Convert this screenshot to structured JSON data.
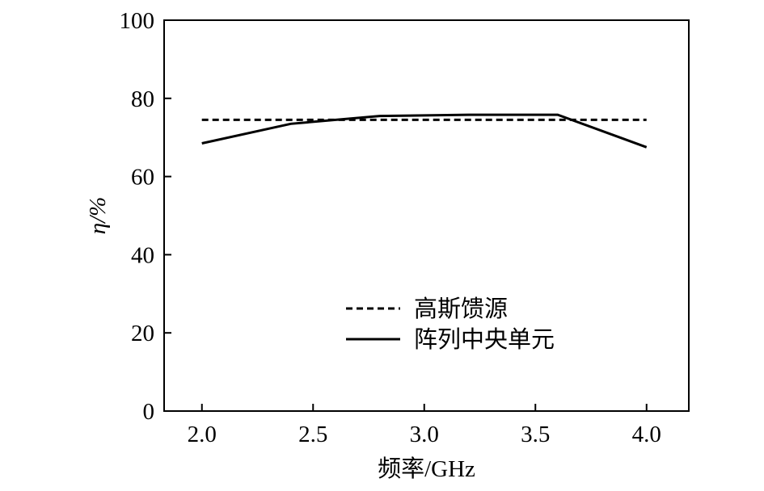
{
  "chart_data": {
    "type": "line",
    "xlabel": "频率/GHz",
    "ylabel": "η/%",
    "xlim": [
      1.83,
      4.19
    ],
    "ylim": [
      0,
      100
    ],
    "xticks": [
      "2.0",
      "2.5",
      "3.0",
      "3.5",
      "4.0"
    ],
    "yticks": [
      "0",
      "20",
      "40",
      "60",
      "80",
      "100"
    ],
    "grid": false,
    "legend_position": "center-bottom",
    "series": [
      {
        "name": "高斯馈源",
        "style": "dashed",
        "color": "#000000",
        "x": [
          2.0,
          2.5,
          3.0,
          3.5,
          4.0
        ],
        "y": [
          74.5,
          74.5,
          74.5,
          74.5,
          74.5
        ]
      },
      {
        "name": "阵列中央单元",
        "style": "solid",
        "color": "#000000",
        "x": [
          2.0,
          2.4,
          2.8,
          3.2,
          3.6,
          4.0
        ],
        "y": [
          68.5,
          73.5,
          75.5,
          75.8,
          75.8,
          67.5
        ]
      }
    ]
  }
}
